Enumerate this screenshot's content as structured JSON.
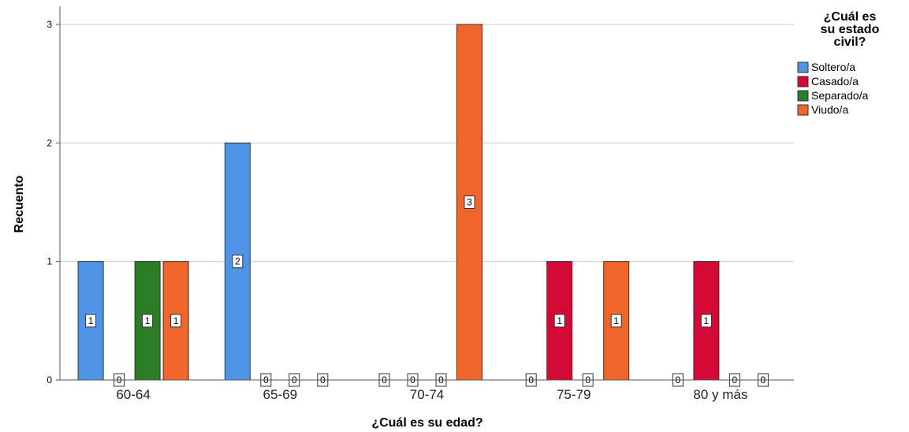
{
  "chart_data": {
    "type": "bar",
    "categories": [
      "60-64",
      "65-69",
      "70-74",
      "75-79",
      "80 y más"
    ],
    "series": [
      {
        "name": "Soltero/a",
        "values": [
          1,
          2,
          0,
          0,
          0
        ],
        "color": "#4f94e6"
      },
      {
        "name": "Casado/a",
        "values": [
          0,
          0,
          0,
          1,
          1
        ],
        "color": "#d20a35"
      },
      {
        "name": "Separado/a",
        "values": [
          1,
          0,
          0,
          0,
          0
        ],
        "color": "#2a7d26"
      },
      {
        "name": "Viudo/a",
        "values": [
          1,
          0,
          3,
          1,
          0
        ],
        "color": "#f0652a"
      }
    ],
    "title": "",
    "xlabel": "¿Cuál es su edad?",
    "ylabel": "Recuento",
    "ylim": [
      0,
      3
    ],
    "yticks": [
      0,
      1,
      2,
      3
    ],
    "legend": {
      "title_lines": [
        "¿Cuál es",
        "su estado",
        "civil?"
      ],
      "placement": "right"
    },
    "grid": true
  }
}
